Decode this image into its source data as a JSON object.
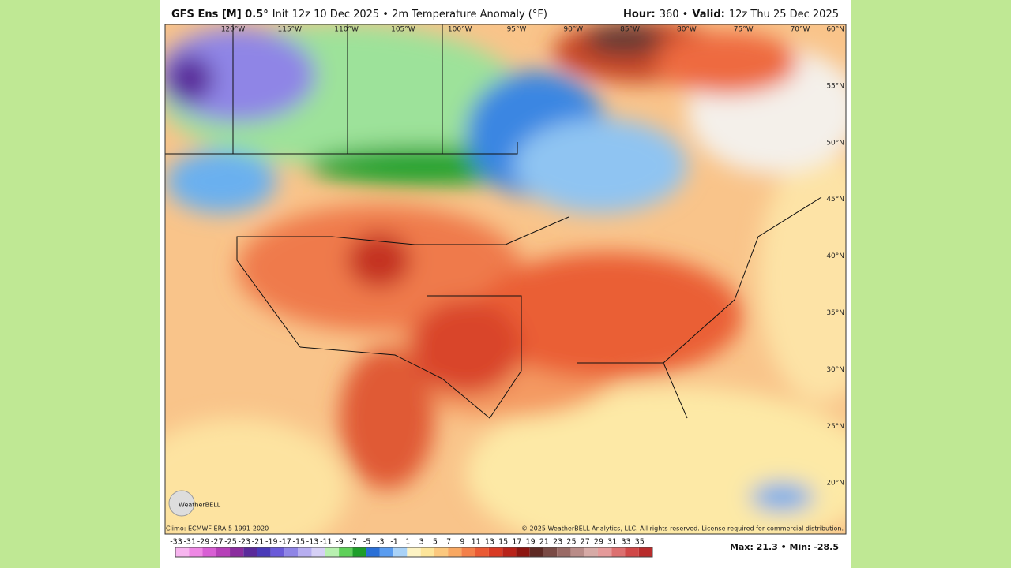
{
  "header": {
    "model": "GFS Ens [M] 0.5°",
    "init": "Init 12z 10 Dec 2025 • 2m Temperature Anomaly (°F)",
    "hour_label": "Hour:",
    "hour": "360 •",
    "valid_label": "Valid:",
    "valid": "12z Thu 25 Dec 2025"
  },
  "map": {
    "longitudes": [
      "120°W",
      "115°W",
      "110°W",
      "105°W",
      "100°W",
      "95°W",
      "90°W",
      "85°W",
      "80°W",
      "75°W",
      "70°W"
    ],
    "latitudes": [
      "60°N",
      "55°N",
      "50°N",
      "45°N",
      "40°N",
      "35°N",
      "30°N",
      "25°N",
      "20°N"
    ],
    "logo": "WeatherBELL",
    "climo": "Climo: ECMWF ERA-5 1991-2020",
    "copyright": "© 2025 WeatherBELL Analytics, LLC. All rights reserved. License required for commercial distribution."
  },
  "colorbar": {
    "labels": [
      -33,
      -31,
      -29,
      -27,
      -25,
      -23,
      -21,
      -19,
      -17,
      -15,
      -13,
      -11,
      -9,
      -7,
      -5,
      -3,
      -1,
      1,
      3,
      5,
      7,
      9,
      11,
      13,
      15,
      17,
      19,
      21,
      23,
      25,
      27,
      29,
      31,
      33,
      35
    ],
    "colors": [
      "#f7b5ef",
      "#ee88e4",
      "#d85fd4",
      "#b640b8",
      "#8b2d9e",
      "#5a2a9a",
      "#4a3ab8",
      "#6a5ad8",
      "#8f85e6",
      "#b7aef0",
      "#d6d0f6",
      "#b8f0b0",
      "#5fd05a",
      "#1e9e2a",
      "#2a6fd6",
      "#5a9cef",
      "#a9d2f7",
      "#fdf3c4",
      "#fde59a",
      "#fbc87e",
      "#f8a862",
      "#f3804a",
      "#ea5a34",
      "#d83a24",
      "#b8231a",
      "#8c1510",
      "#5e2a24",
      "#7a4b45",
      "#9a6b66",
      "#b98c88",
      "#d6aaa6",
      "#e49a9a",
      "#dc7070",
      "#d04848",
      "#b82c2c"
    ]
  },
  "stats": {
    "max": "Max: 21.3 • Min: -28.5"
  }
}
